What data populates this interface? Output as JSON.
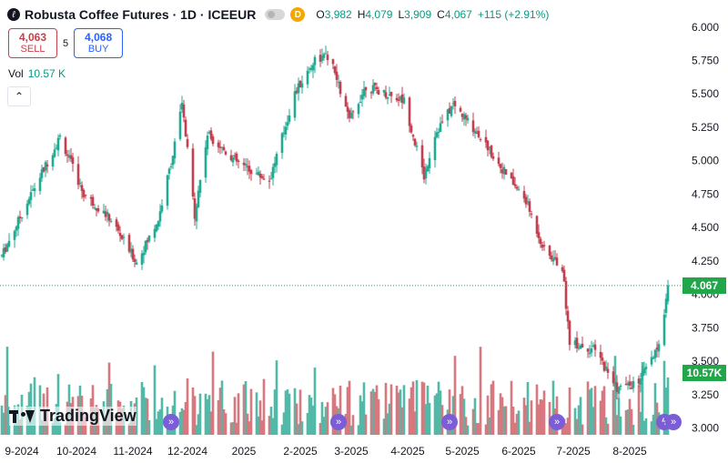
{
  "header": {
    "symbol_initial": "ℓ",
    "title": "Robusta Coffee Futures · 1D · ICEEUR",
    "badge": "D",
    "ohlc": [
      {
        "k": "O",
        "v": "3,982"
      },
      {
        "k": "H",
        "v": "4,079"
      },
      {
        "k": "L",
        "v": "3,909"
      },
      {
        "k": "C",
        "v": "4,067"
      },
      {
        "k": "",
        "v": "+115 (+2.91%)"
      }
    ]
  },
  "trade": {
    "sell_price": "4,063",
    "sell_label": "SELL",
    "spread": "5",
    "buy_price": "4,068",
    "buy_label": "BUY"
  },
  "volume": {
    "label": "Vol",
    "value": "10.57 K"
  },
  "collapse_icon": "chevron-up-icon",
  "logo": {
    "text": "TradingView"
  },
  "price_tag": {
    "value": "4.067",
    "color": "#22a64a"
  },
  "volume_tag": {
    "value": "10.57K",
    "color": "#22a64a"
  },
  "events": [
    {
      "icon": "dividend-icon",
      "glyph": "»",
      "date": "2024-11-27"
    },
    {
      "icon": "dividend-icon",
      "glyph": "»",
      "date": "2025-02-27"
    },
    {
      "icon": "dividend-icon",
      "glyph": "»",
      "date": "2025-04-29"
    },
    {
      "icon": "dividend-icon",
      "glyph": "»",
      "date": "2025-06-27"
    },
    {
      "icon": "lightning-icon",
      "glyph": "ϟ",
      "date": "2025-08-25"
    },
    {
      "icon": "dividend-icon",
      "glyph": "»",
      "date": "2025-08-30"
    }
  ],
  "colors": {
    "up": "#22ab94",
    "down": "#c53f4f",
    "up_vol": "#52b9a8",
    "down_vol": "#d9777f",
    "event": "#7b5ed6"
  },
  "chart_data": {
    "type": "candlestick",
    "y_ticks": [
      "6.000",
      "5.750",
      "5.500",
      "5.250",
      "5.000",
      "4.750",
      "4.500",
      "4.250",
      "4.000",
      "3.750",
      "3.500",
      "3.250",
      "3.000"
    ],
    "x_ticks": [
      "9-2024",
      "10-2024",
      "11-2024",
      "12-2024",
      "2025",
      "2-2025",
      "3-2025",
      "4-2025",
      "5-2025",
      "6-2025",
      "7-2025",
      "8-2025"
    ],
    "ylim": [
      2950,
      6080
    ],
    "last_price": 4067,
    "trend_keypoints": [
      {
        "date": "2024-08-26",
        "close": 4290
      },
      {
        "date": "2024-09-10",
        "close": 4720
      },
      {
        "date": "2024-09-27",
        "close": 5180
      },
      {
        "date": "2024-10-10",
        "close": 4750
      },
      {
        "date": "2024-10-25",
        "close": 4560
      },
      {
        "date": "2024-11-08",
        "close": 4240
      },
      {
        "date": "2024-11-20",
        "close": 4560
      },
      {
        "date": "2024-11-28",
        "close": 5050
      },
      {
        "date": "2024-12-03",
        "close": 5420
      },
      {
        "date": "2024-12-10",
        "close": 4600
      },
      {
        "date": "2024-12-17",
        "close": 5200
      },
      {
        "date": "2025-01-03",
        "close": 4980
      },
      {
        "date": "2025-01-20",
        "close": 4850
      },
      {
        "date": "2025-02-03",
        "close": 5500
      },
      {
        "date": "2025-02-14",
        "close": 5760
      },
      {
        "date": "2025-02-22",
        "close": 5780
      },
      {
        "date": "2025-03-05",
        "close": 5300
      },
      {
        "date": "2025-03-14",
        "close": 5560
      },
      {
        "date": "2025-04-04",
        "close": 5450
      },
      {
        "date": "2025-04-15",
        "close": 4880
      },
      {
        "date": "2025-04-21",
        "close": 5200
      },
      {
        "date": "2025-05-01",
        "close": 5420
      },
      {
        "date": "2025-05-15",
        "close": 5200
      },
      {
        "date": "2025-05-30",
        "close": 4900
      },
      {
        "date": "2025-06-10",
        "close": 4700
      },
      {
        "date": "2025-06-20",
        "close": 4330
      },
      {
        "date": "2025-06-30",
        "close": 4200
      },
      {
        "date": "2025-07-04",
        "close": 3650
      },
      {
        "date": "2025-07-18",
        "close": 3580
      },
      {
        "date": "2025-07-30",
        "close": 3300
      },
      {
        "date": "2025-08-10",
        "close": 3330
      },
      {
        "date": "2025-08-22",
        "close": 3600
      },
      {
        "date": "2025-08-27",
        "close": 4067
      }
    ]
  }
}
